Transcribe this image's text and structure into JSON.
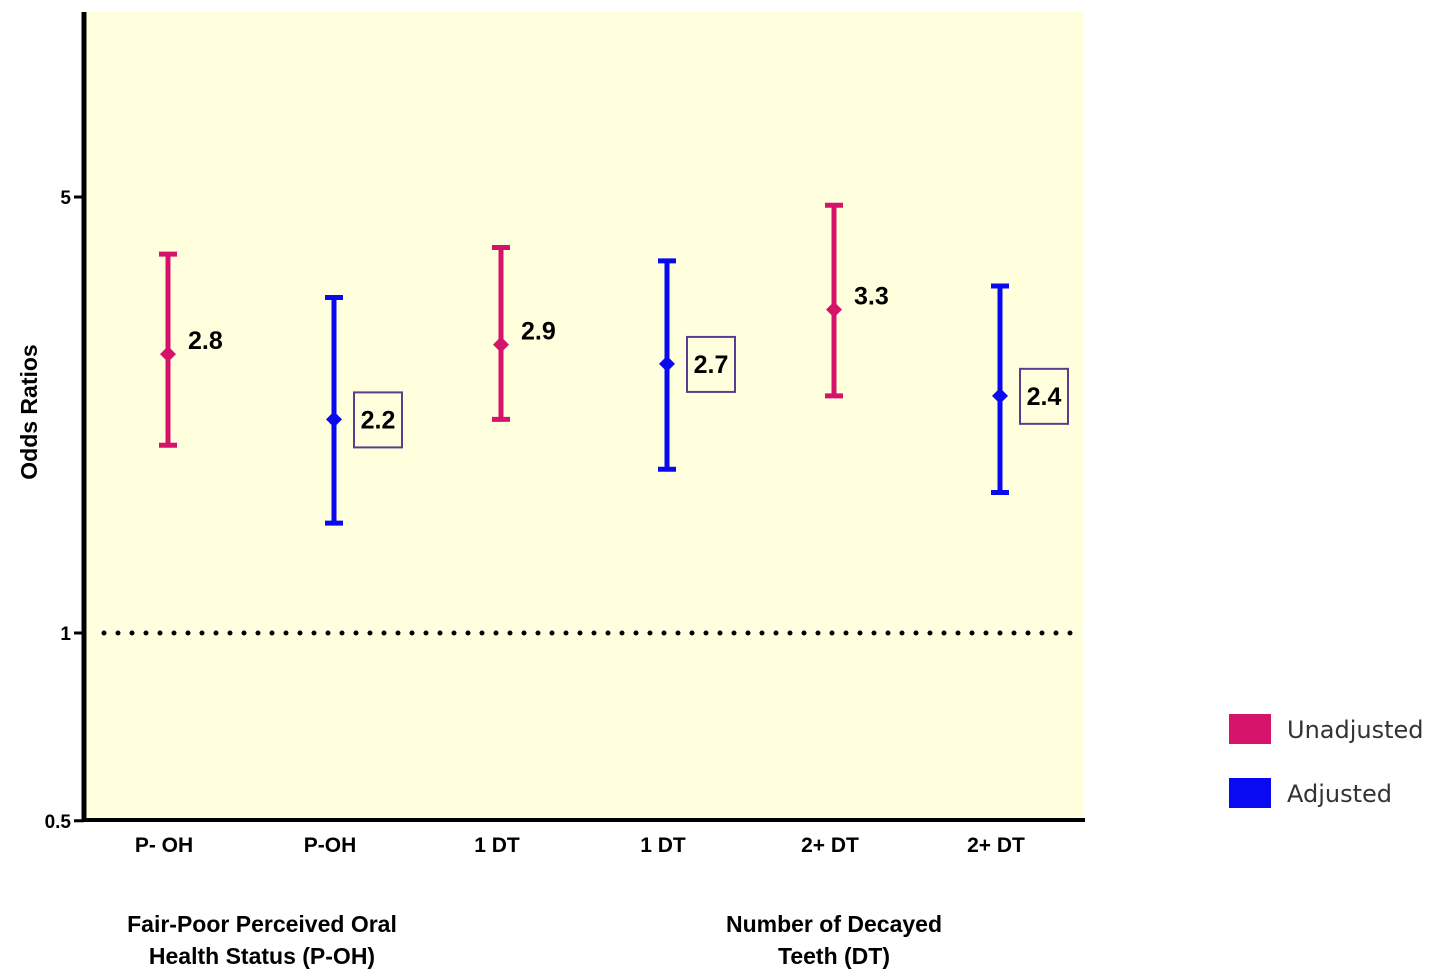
{
  "chart_data": {
    "type": "errorbar",
    "ylabel": "Odds Ratios",
    "yscale": "log",
    "ylim": [
      0.5,
      9.5
    ],
    "yticks": [
      {
        "value": 0.5,
        "label": "0.5"
      },
      {
        "value": 1,
        "label": "1"
      },
      {
        "value": 5,
        "label": "5"
      }
    ],
    "reference_line": {
      "value": 1,
      "style": "dotted"
    },
    "categories": [
      "P- OH",
      "P-OH",
      "1 DT",
      "1 DT",
      "2+ DT",
      "2+ DT"
    ],
    "points": [
      {
        "category": "P- OH",
        "series": "Unadjusted",
        "value": 2.8,
        "lower": 2.0,
        "upper": 4.05,
        "label": "2.8",
        "boxed": false
      },
      {
        "category": "P-OH",
        "series": "Adjusted",
        "value": 2.2,
        "lower": 1.5,
        "upper": 3.45,
        "label": "2.2",
        "boxed": true
      },
      {
        "category": "1 DT",
        "series": "Unadjusted",
        "value": 2.9,
        "lower": 2.2,
        "upper": 4.15,
        "label": "2.9",
        "boxed": false
      },
      {
        "category": "1 DT",
        "series": "Adjusted",
        "value": 2.7,
        "lower": 1.83,
        "upper": 3.95,
        "label": "2.7",
        "boxed": true
      },
      {
        "category": "2+ DT",
        "series": "Unadjusted",
        "value": 3.3,
        "lower": 2.4,
        "upper": 4.85,
        "label": "3.3",
        "boxed": false
      },
      {
        "category": "2+ DT",
        "series": "Adjusted",
        "value": 2.4,
        "lower": 1.68,
        "upper": 3.6,
        "label": "2.4",
        "boxed": true
      }
    ],
    "groups": [
      {
        "label_lines": [
          "Fair-Poor Perceived Oral",
          "Health Status (P-OH)"
        ]
      },
      {
        "label_lines": [
          "Number of Decayed",
          "Teeth (DT)"
        ]
      }
    ],
    "legend": {
      "placement": "bottom-right",
      "items": [
        {
          "label": "Unadjusted",
          "color": "#d6136b"
        },
        {
          "label": "Adjusted",
          "color": "#0a0af2"
        }
      ]
    },
    "colors": {
      "Unadjusted": "#d6136b",
      "Adjusted": "#0a0af2",
      "plot_background": "#ffffdd",
      "label_box_border": "#5a3d8c"
    },
    "grid": false
  }
}
